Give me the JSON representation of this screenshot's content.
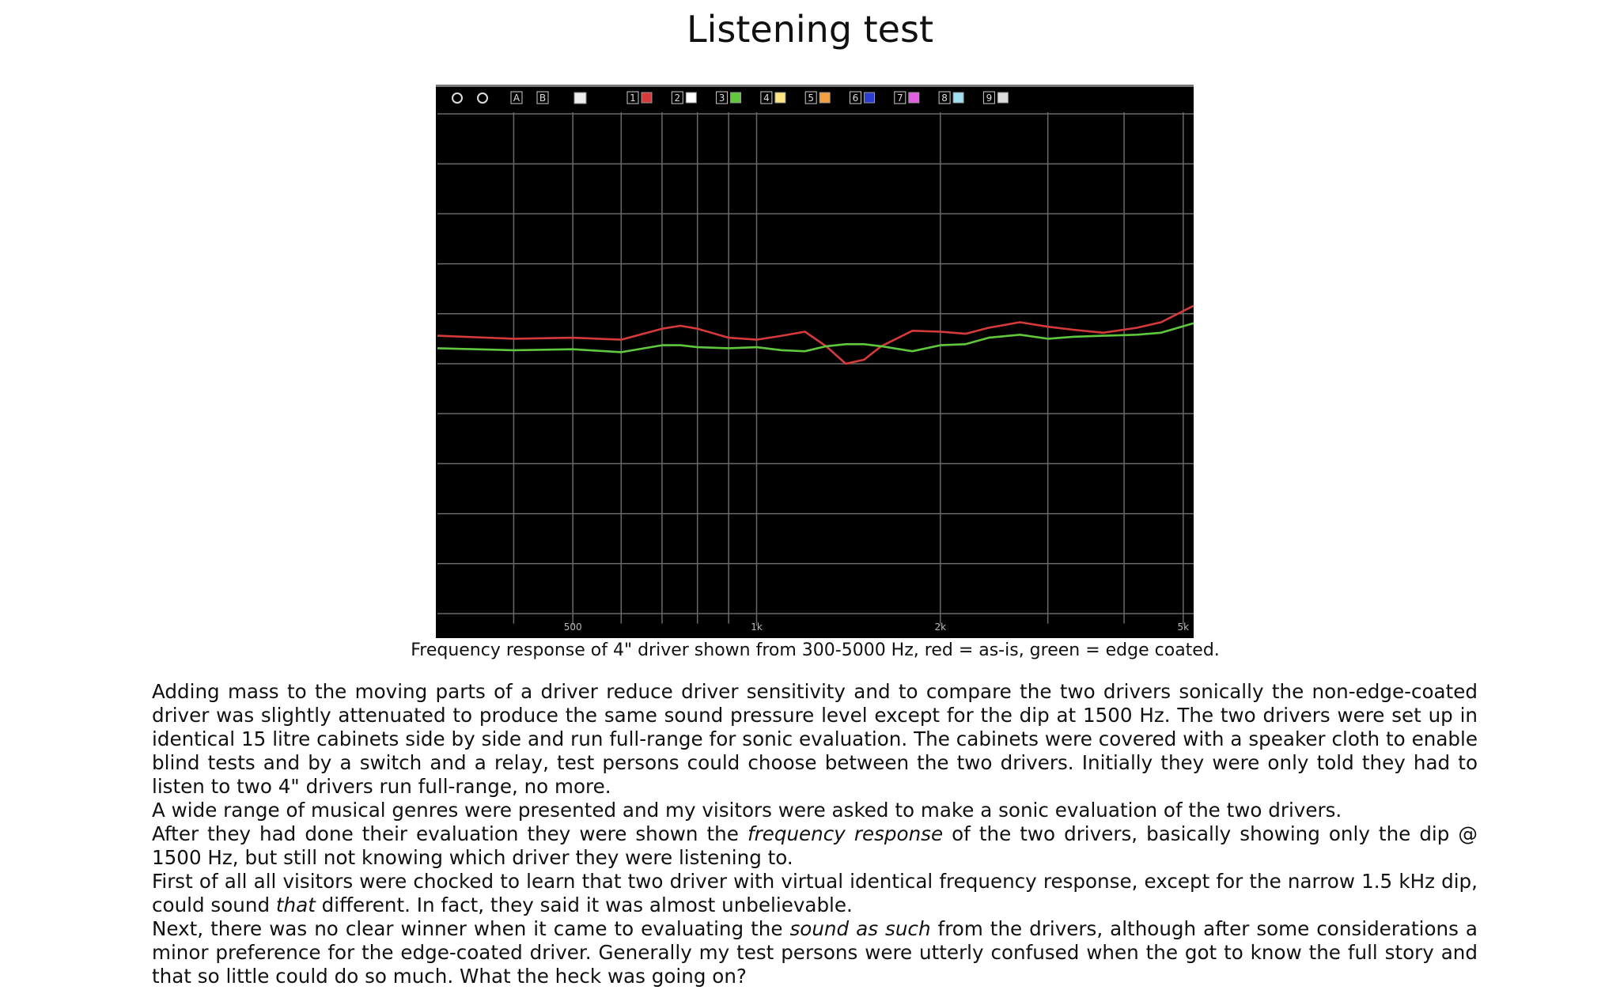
{
  "title": "Listening test",
  "figure": {
    "type": "line",
    "toolbar": [
      "A",
      "B",
      "1",
      "2",
      "3",
      "4",
      "5",
      "6",
      "7",
      "8",
      "9"
    ],
    "x": [
      300,
      400,
      500,
      600,
      700,
      750,
      800,
      900,
      1000,
      1100,
      1200,
      1300,
      1400,
      1500,
      1600,
      1800,
      2000,
      2200,
      2400,
      2700,
      3000,
      3300,
      3700,
      4200,
      4600,
      5200
    ],
    "series": [
      {
        "color": "#d63a3a",
        "values": [
          5.56,
          5.5,
          5.52,
          5.48,
          5.7,
          5.76,
          5.7,
          5.52,
          5.48,
          5.56,
          5.64,
          5.35,
          5.0,
          5.08,
          5.35,
          5.66,
          5.64,
          5.6,
          5.72,
          5.83,
          5.74,
          5.68,
          5.62,
          5.72,
          5.83,
          6.16
        ]
      },
      {
        "color": "#5fc83c",
        "values": [
          5.31,
          5.27,
          5.29,
          5.23,
          5.37,
          5.37,
          5.33,
          5.31,
          5.33,
          5.27,
          5.25,
          5.35,
          5.39,
          5.39,
          5.35,
          5.25,
          5.37,
          5.39,
          5.52,
          5.58,
          5.5,
          5.54,
          5.56,
          5.58,
          5.62,
          5.81
        ]
      }
    ],
    "log_x": true,
    "xlim": [
      300,
      5200
    ],
    "xticks": [
      {
        "value": 500,
        "label": "500"
      },
      {
        "value": 1000,
        "label": "1k"
      },
      {
        "value": 2000,
        "label": "2k"
      },
      {
        "value": 5000,
        "label": "5k"
      }
    ],
    "xgrid": [
      400,
      500,
      600,
      700,
      800,
      900,
      1000,
      2000,
      3000,
      4000,
      5000
    ],
    "ylim": [
      -0.2,
      10
    ],
    "yticks": [
      0,
      1,
      2,
      3,
      4,
      5,
      6,
      7,
      8,
      9,
      10
    ],
    "grid": true,
    "caption": "Frequency response of 4\" driver shown from 300-5000 Hz, red = as-is, green = edge coated."
  },
  "body": [
    [
      "Adding mass to the moving parts of a driver reduce driver sensitivity and to compare the two drivers sonically the non-edge-coated driver was slightly attenuated to produce the same sound pressure level except for the dip at 1500 Hz. The two drivers were set up in identical 15 litre cabinets side by side and run full-range for sonic evaluation. The cabinets were covered with a speaker cloth to enable blind tests and by a switch and a relay, test persons could choose between the two drivers. Initially they were only told they had to listen to two 4\" drivers run full-range, no more."
    ],
    [
      "A wide range of musical genres were presented and my visitors were asked to make a sonic evaluation of the two drivers."
    ],
    [
      "After they had done their evaluation they were shown the ",
      "frequency response",
      " of the two drivers, basically showing only the dip @ 1500 Hz, but still not knowing which driver they were listening to."
    ],
    [
      "First of all all visitors were chocked to learn that two driver with virtual identical frequency response, except for the narrow 1.5 kHz dip, could sound ",
      "that",
      " different. In fact, they said it was almost unbelievable."
    ],
    [
      "Next, there was no clear winner when it came to evaluating the ",
      "sound as such",
      " from the drivers, although after some considerations a minor preference for the edge-coated driver. Generally my test persons were utterly confused when the got to know the full story and that so little could do so much. What the heck was going on?"
    ]
  ]
}
